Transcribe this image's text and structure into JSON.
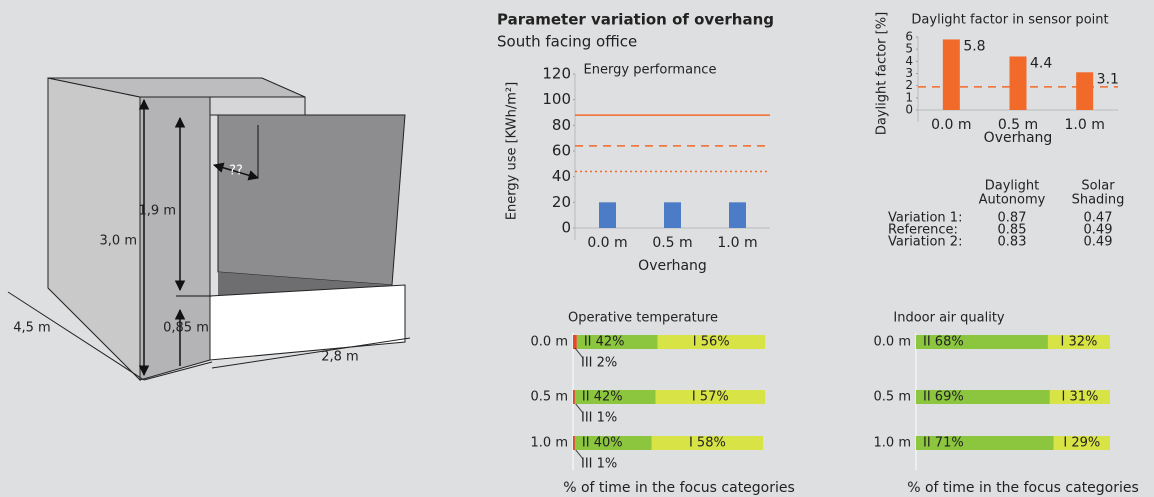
{
  "header": {
    "title": "Parameter variation of overhang",
    "subtitle": "South facing office"
  },
  "diagram": {
    "labels": [
      "3,0 m",
      "1,9 m",
      "0,85 m",
      "4,5 m",
      "2,8 m",
      "??"
    ]
  },
  "table": {
    "columns": [
      [
        "Daylight",
        "Autonomy"
      ],
      [
        "Solar",
        "Shading"
      ]
    ],
    "rows": [
      [
        "Variation 1:",
        "0.87",
        "0.47"
      ],
      [
        "Reference:",
        "0.85",
        "0.49"
      ],
      [
        "Variation 2:",
        "0.83",
        "0.49"
      ]
    ]
  },
  "chart_data": [
    {
      "type": "bar",
      "title": "Energy performance",
      "y_label": "Energy use [KWh/m²]",
      "x_label": "Overhang",
      "categories": [
        "0.0 m",
        "0.5 m",
        "1.0 m"
      ],
      "values": [
        20,
        20,
        20
      ],
      "color": "#4c7cc8",
      "ylim": [
        0,
        120
      ],
      "yticks": [
        0,
        20,
        40,
        60,
        80,
        100,
        120
      ],
      "lines": [
        {
          "value": 88,
          "dash": "solid"
        },
        {
          "value": 64,
          "dash": "dashed"
        },
        {
          "value": 44,
          "dash": "dotted"
        }
      ],
      "line_color": "#f26a2a"
    },
    {
      "type": "bar",
      "title": "Daylight factor in sensor point",
      "y_label": "Daylight factor [%]",
      "x_label": "Overhang",
      "categories": [
        "0.0 m",
        "0.5 m",
        "1.0 m"
      ],
      "values": [
        5.8,
        4.4,
        3.1
      ],
      "color": "#f26a2a",
      "show_values": true,
      "ylim": [
        0,
        6
      ],
      "yticks": [
        0,
        1,
        2,
        3,
        4,
        5,
        6
      ],
      "lines": [
        {
          "value": 1.9,
          "dash": "dashed"
        }
      ],
      "line_color": "#f26a2a"
    },
    {
      "type": "stacked_barh",
      "title": "Operative temperature",
      "x_label": "% of time in the focus categories",
      "categories": [
        "0.0 m",
        "0.5 m",
        "1.0 m"
      ],
      "xlim": [
        0,
        100
      ],
      "series": [
        {
          "color": "#e9472a",
          "values": [
            2,
            1,
            1
          ],
          "value_labels": [
            "III 2%",
            "III 1%",
            "III 1%"
          ]
        },
        {
          "color": "#8cc63e",
          "values": [
            42,
            42,
            40
          ],
          "value_labels": [
            "II 42%",
            "II 42%",
            "II 40%"
          ]
        },
        {
          "color": "#d8e345",
          "values": [
            56,
            57,
            58
          ],
          "value_labels": [
            "I 56%",
            "I 57%",
            "I 58%"
          ]
        }
      ]
    },
    {
      "type": "stacked_barh",
      "title": "Indoor air quality",
      "x_label": "% of time in the focus categories",
      "categories": [
        "0.0 m",
        "0.5 m",
        "1.0 m"
      ],
      "xlim": [
        0,
        100
      ],
      "series": [
        {
          "color": "#8cc63e",
          "values": [
            68,
            69,
            71
          ],
          "value_labels": [
            "II 68%",
            "II 69%",
            "II 71%"
          ]
        },
        {
          "color": "#d8e345",
          "values": [
            32,
            31,
            29
          ],
          "value_labels": [
            "I 32%",
            "I 31%",
            "I 29%"
          ]
        }
      ]
    }
  ]
}
